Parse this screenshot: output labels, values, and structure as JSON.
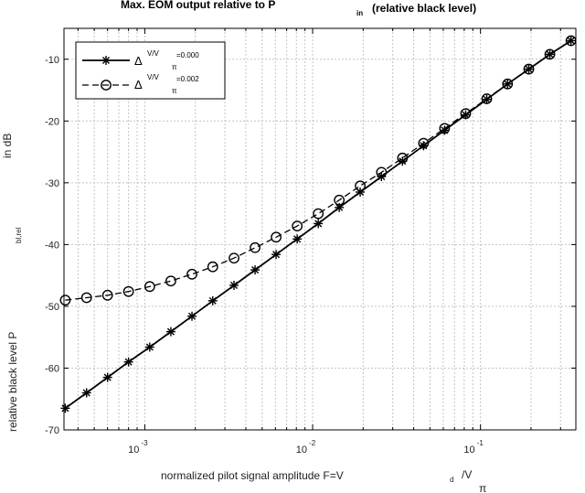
{
  "chart_data": {
    "type": "line",
    "title": "Max. EOM output relative to P",
    "title_subscript": "in",
    "title_suffix": "(relative black level)",
    "xlabel": "normalized pilot signal amplitude F=V",
    "xlabel_sub": "d",
    "xlabel_frac": "/V",
    "xlabel_pi": "π",
    "ylabel": "relative black level P",
    "ylabel_sub": "bl,rel",
    "ylabel_suffix": "in dB",
    "x_scale": "log",
    "xlim": [
      0.00033,
      0.37
    ],
    "ylim": [
      -70,
      -5
    ],
    "x_ticks": [
      {
        "value": 0.001,
        "base": "10",
        "exp": "-3"
      },
      {
        "value": 0.01,
        "base": "10",
        "exp": "-2"
      },
      {
        "value": 0.1,
        "base": "10",
        "exp": "-1"
      }
    ],
    "y_ticks": [
      {
        "value": -10,
        "label": "-10"
      },
      {
        "value": -20,
        "label": "-20"
      },
      {
        "value": -30,
        "label": "-30"
      },
      {
        "value": -40,
        "label": "-40"
      },
      {
        "value": -50,
        "label": "-50"
      },
      {
        "value": -60,
        "label": "-60"
      },
      {
        "value": -70,
        "label": "-70"
      }
    ],
    "grid": true,
    "legend_position": "top-left",
    "series": [
      {
        "legend": {
          "delta": "Δ",
          "sup": "V/V",
          "pi": "π",
          "value": "=0.000"
        },
        "marker": "asterisk",
        "dash": "solid",
        "x": [
          0.000336,
          0.00045,
          0.0006,
          0.0008,
          0.00107,
          0.00143,
          0.00191,
          0.00254,
          0.0034,
          0.00454,
          0.00606,
          0.00809,
          0.0108,
          0.0144,
          0.0192,
          0.0257,
          0.0343,
          0.0458,
          0.0611,
          0.0816,
          0.109,
          0.145,
          0.194,
          0.259,
          0.346
        ],
        "y": [
          -66.5,
          -64.0,
          -61.5,
          -59.0,
          -56.6,
          -54.1,
          -51.6,
          -49.1,
          -46.6,
          -44.1,
          -41.6,
          -39.1,
          -36.6,
          -34.0,
          -31.5,
          -29.0,
          -26.5,
          -24.0,
          -21.5,
          -19.0,
          -16.5,
          -14.0,
          -11.6,
          -9.2,
          -7.0
        ]
      },
      {
        "legend": {
          "delta": "Δ",
          "sup": "V/V",
          "pi": "π",
          "value": "=0.002"
        },
        "marker": "circle",
        "dash": "dash",
        "x": [
          0.000336,
          0.00045,
          0.0006,
          0.0008,
          0.00107,
          0.00143,
          0.00191,
          0.00254,
          0.0034,
          0.00454,
          0.00606,
          0.00809,
          0.0108,
          0.0144,
          0.0192,
          0.0257,
          0.0343,
          0.0458,
          0.0611,
          0.0816,
          0.109,
          0.145,
          0.194,
          0.259,
          0.346
        ],
        "y": [
          -49.0,
          -48.6,
          -48.2,
          -47.6,
          -46.8,
          -45.9,
          -44.8,
          -43.6,
          -42.2,
          -40.5,
          -38.8,
          -37.0,
          -35.0,
          -32.8,
          -30.5,
          -28.3,
          -26.0,
          -23.6,
          -21.2,
          -18.8,
          -16.4,
          -14.0,
          -11.6,
          -9.2,
          -7.0
        ]
      }
    ]
  }
}
